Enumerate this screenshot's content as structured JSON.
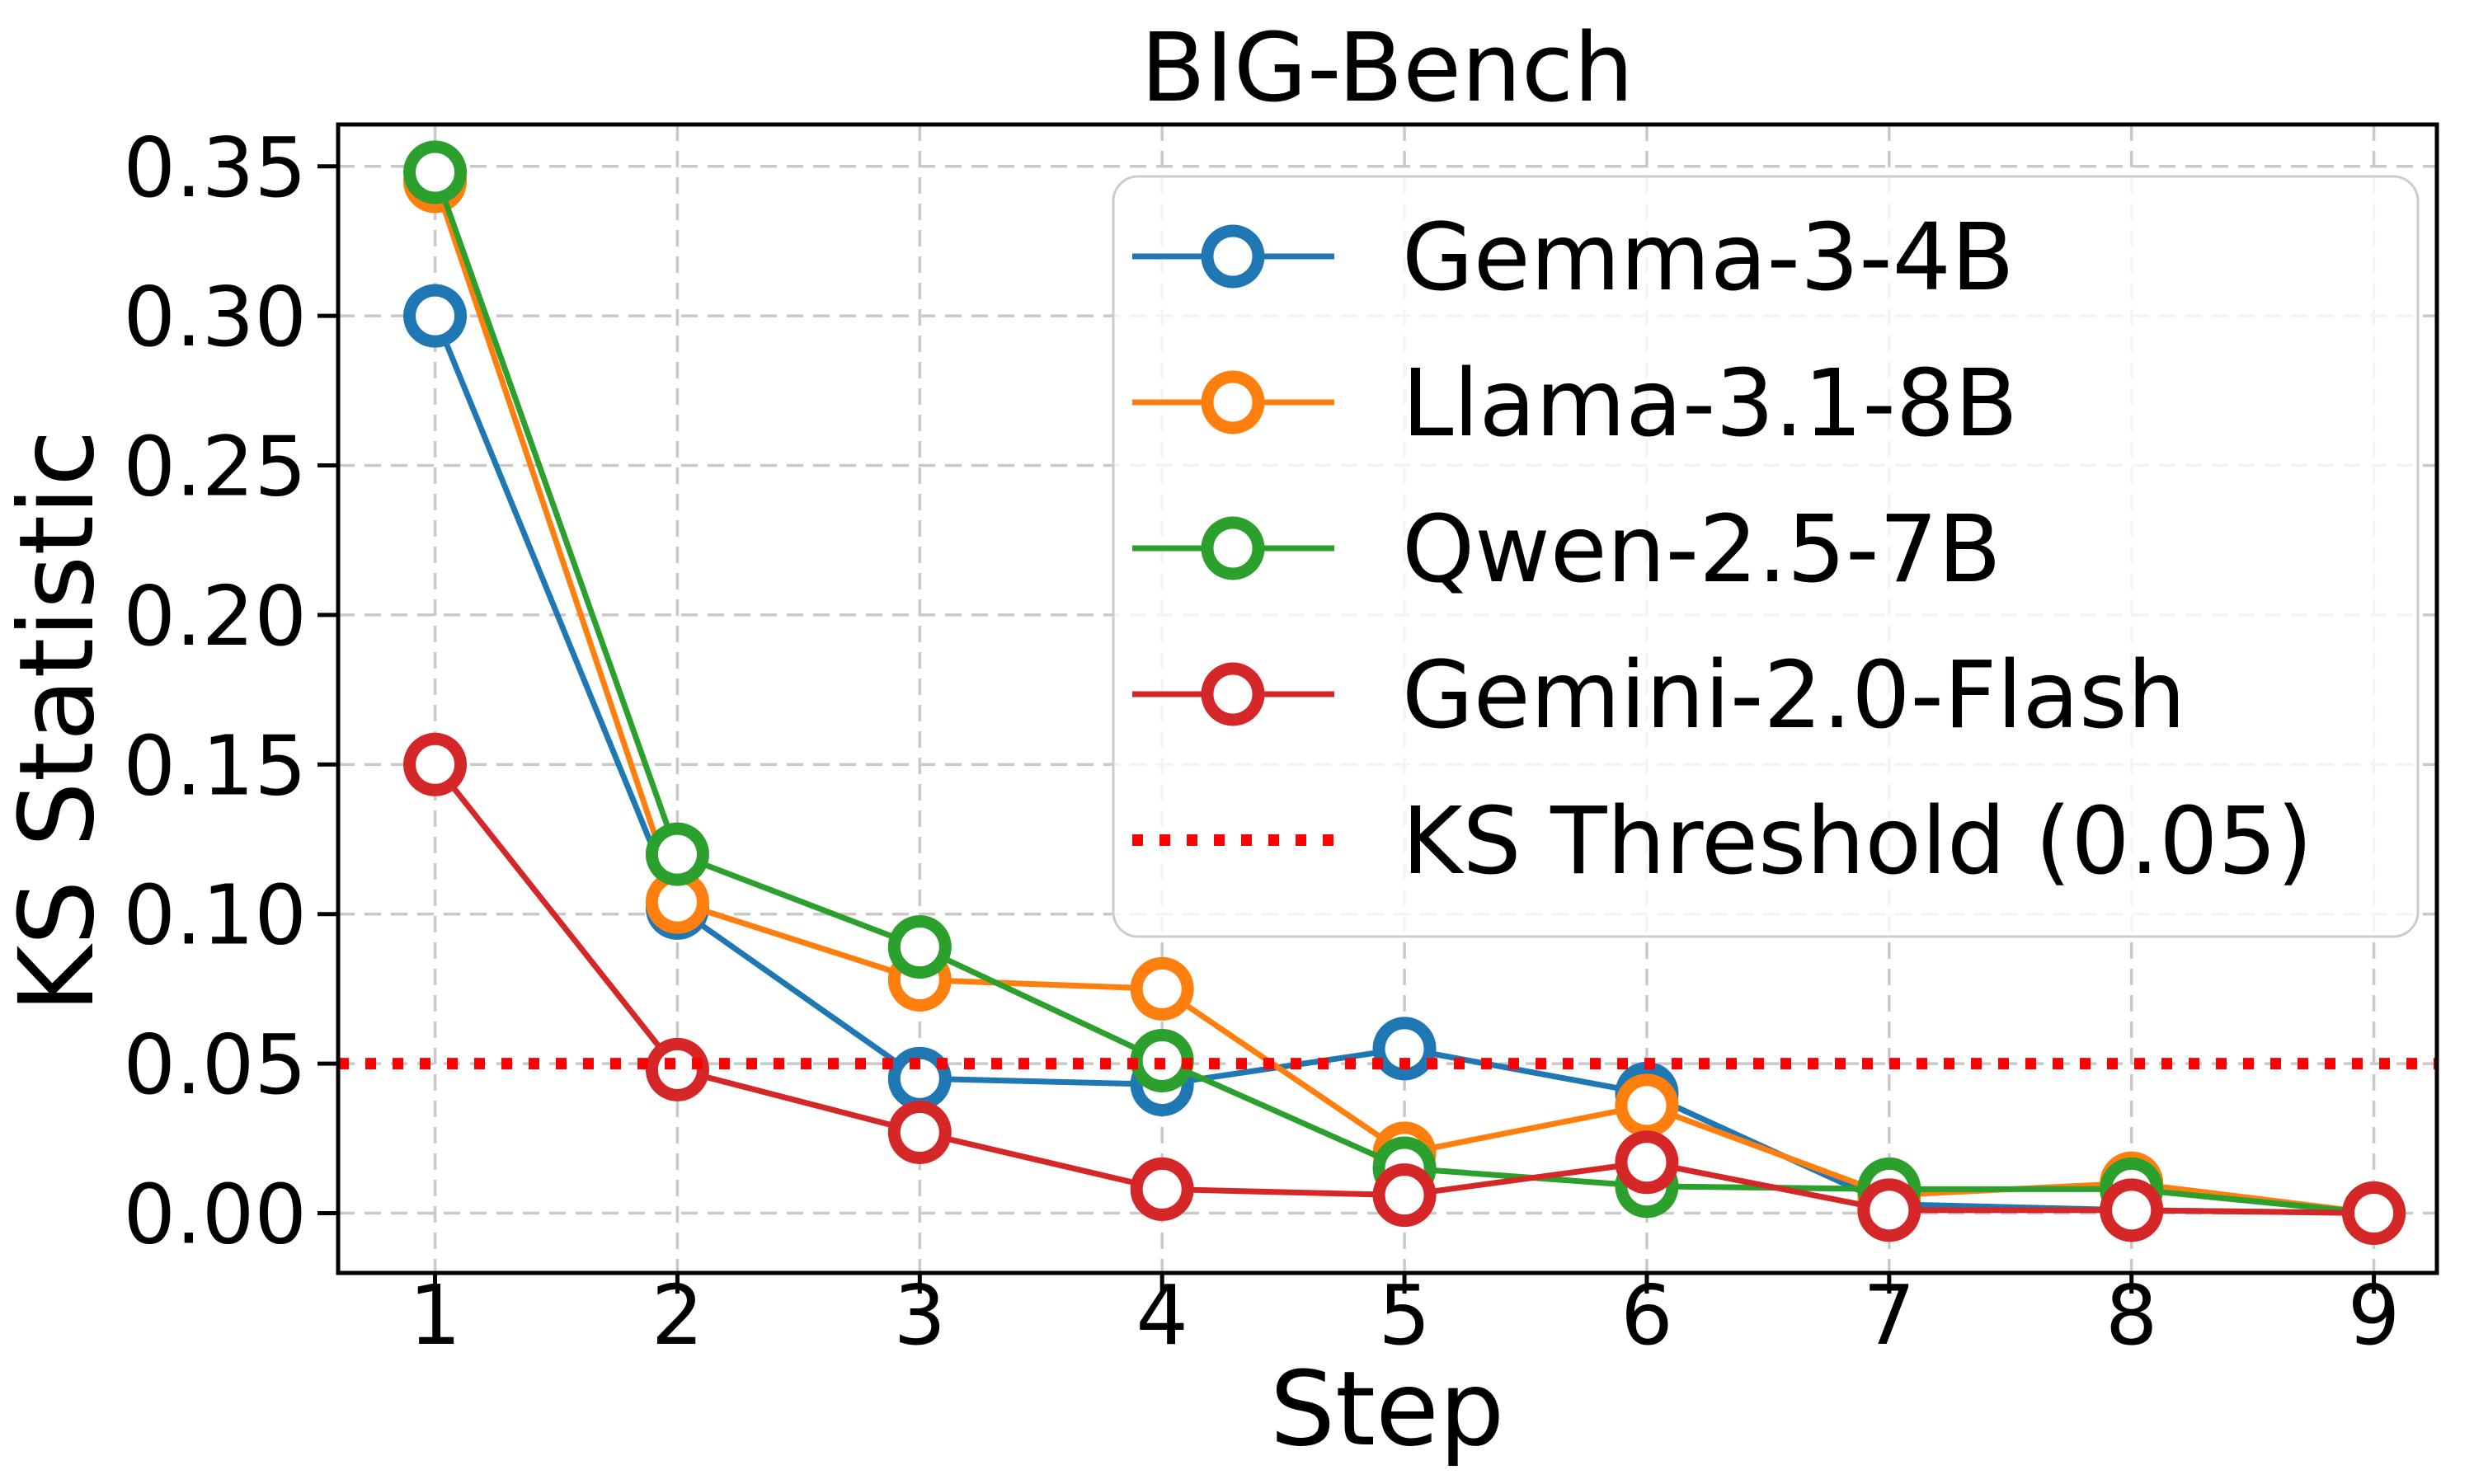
{
  "chart_data": {
    "type": "line",
    "title": "BIG-Bench",
    "xlabel": "Step",
    "ylabel": "KS Statistic",
    "x": [
      1,
      2,
      3,
      4,
      5,
      6,
      7,
      8,
      9
    ],
    "xtick_labels": [
      "1",
      "2",
      "3",
      "4",
      "5",
      "6",
      "7",
      "8",
      "9"
    ],
    "ytick_values": [
      0.0,
      0.05,
      0.1,
      0.15,
      0.2,
      0.25,
      0.3,
      0.35
    ],
    "ytick_labels": [
      "0.00",
      "0.05",
      "0.10",
      "0.15",
      "0.20",
      "0.25",
      "0.30",
      "0.35"
    ],
    "xlim": [
      0.6,
      9.26
    ],
    "ylim": [
      -0.02,
      0.364
    ],
    "grid": true,
    "grid_style": "dashed",
    "legend_position": "upper right",
    "marker": "open-circle",
    "series": [
      {
        "name": "Gemma-3-4B",
        "color": "#1f77b4",
        "values": [
          0.3,
          0.102,
          0.045,
          0.043,
          0.055,
          0.04,
          0.003,
          0.001,
          0.0
        ]
      },
      {
        "name": "Llama-3.1-8B",
        "color": "#ff7f0e",
        "values": [
          0.345,
          0.104,
          0.078,
          0.075,
          0.02,
          0.036,
          0.006,
          0.01,
          0.0
        ]
      },
      {
        "name": "Qwen-2.5-7B",
        "color": "#2ca02c",
        "values": [
          0.348,
          0.12,
          0.089,
          0.051,
          0.015,
          0.009,
          0.008,
          0.008,
          0.0
        ]
      },
      {
        "name": "Gemini-2.0-Flash",
        "color": "#d62728",
        "values": [
          0.15,
          0.048,
          0.027,
          0.008,
          0.006,
          0.017,
          0.001,
          0.001,
          0.0
        ]
      }
    ],
    "threshold": {
      "label": "KS Threshold (0.05)",
      "value": 0.05,
      "color": "#ff0000",
      "style": "dotted"
    }
  },
  "colors": {
    "background": "#ffffff",
    "grid": "#c9c9c9",
    "spine": "#000000",
    "legend_border": "#cccccc",
    "legend_fill_alpha": "0.8"
  }
}
